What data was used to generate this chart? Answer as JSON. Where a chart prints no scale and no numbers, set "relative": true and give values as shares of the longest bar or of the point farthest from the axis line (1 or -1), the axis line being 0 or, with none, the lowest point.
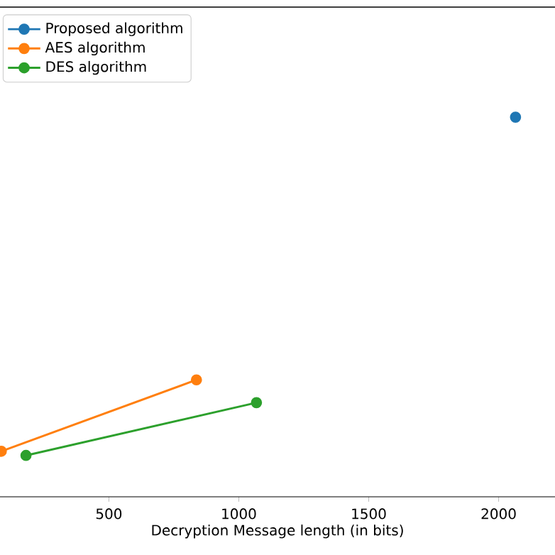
{
  "chart_data": {
    "type": "line",
    "xlabel": "Decryption Message length (in bits)",
    "relative": true,
    "xlim": [
      81,
      2217
    ],
    "xticks": [
      500,
      1000,
      1500,
      2000
    ],
    "marker": "circle",
    "legend": "top left",
    "series": [
      {
        "name": "Proposed algorithm",
        "color": "#1f77b4",
        "x": [
          2065
        ],
        "values": [
          1
        ]
      },
      {
        "name": "AES algorithm",
        "color": "#ff7f0e",
        "x": [
          86,
          837
        ],
        "values": [
          0.12,
          0.308
        ]
      },
      {
        "name": "DES algorithm",
        "color": "#2ca02c",
        "x": [
          181,
          1068
        ],
        "values": [
          0.109,
          0.248
        ]
      }
    ]
  }
}
